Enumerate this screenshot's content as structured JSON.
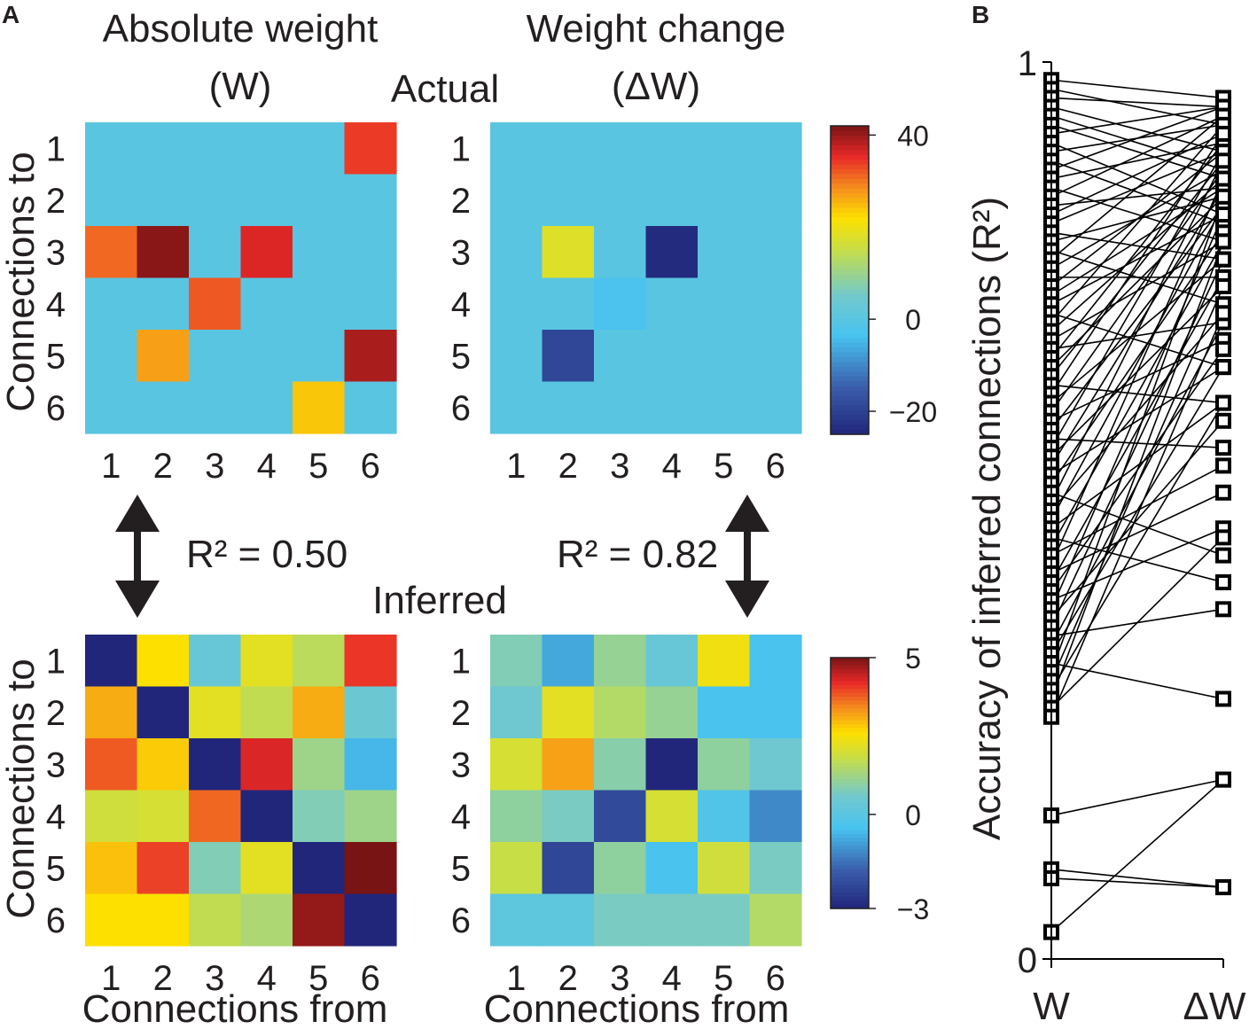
{
  "panel_labels": {
    "a": "A",
    "b": "B"
  },
  "labels": {
    "abs_title_line1": "Absolute weight",
    "abs_title_line2": "(W)",
    "chg_title_line1": "Weight change",
    "chg_title_line2": "(ΔW)",
    "actual": "Actual",
    "inferred": "Inferred",
    "r2_left": "R² = 0.50",
    "r2_right": "R² = 0.82",
    "connections_to": "Connections to",
    "connections_from": "Connections from"
  },
  "colors": {
    "background_cell": "#73c9cc",
    "line": "#000000",
    "text": "#231f20"
  },
  "chart_data": [
    {
      "type": "heatmap",
      "id": "actual-w",
      "title": "Absolute weight (W)",
      "ylabel": "Connections to",
      "xlabel": "",
      "x_ticks": [
        "1",
        "2",
        "3",
        "4",
        "5",
        "6"
      ],
      "y_ticks": [
        "1",
        "2",
        "3",
        "4",
        "5",
        "6"
      ],
      "cmin": -25,
      "cmax": 42,
      "values": [
        [
          0,
          0,
          0,
          0,
          0,
          34
        ],
        [
          0,
          0,
          0,
          0,
          0,
          0
        ],
        [
          31,
          41,
          0,
          36,
          0,
          0
        ],
        [
          0,
          0,
          32,
          0,
          0,
          0
        ],
        [
          0,
          27,
          0,
          0,
          0,
          39
        ],
        [
          0,
          0,
          0,
          0,
          24,
          0
        ]
      ]
    },
    {
      "type": "heatmap",
      "id": "actual-dw",
      "title": "Weight change (ΔW)",
      "xlabel": "",
      "ylabel": "",
      "x_ticks": [
        "1",
        "2",
        "3",
        "4",
        "5",
        "6"
      ],
      "y_ticks": [
        "1",
        "2",
        "3",
        "4",
        "5",
        "6"
      ],
      "cmin": -25,
      "cmax": 42,
      "values": [
        [
          0,
          0,
          0,
          0,
          0,
          0
        ],
        [
          0,
          0,
          0,
          0,
          0,
          0
        ],
        [
          0,
          18,
          0,
          -24,
          0,
          0
        ],
        [
          0,
          0,
          -3,
          0,
          0,
          0
        ],
        [
          0,
          -19,
          0,
          0,
          0,
          0
        ],
        [
          0,
          0,
          0,
          0,
          0,
          0
        ]
      ],
      "colorbar": {
        "ticks": [
          "40",
          "0",
          "−20"
        ],
        "tick_values": [
          40,
          0,
          -20
        ]
      }
    },
    {
      "type": "heatmap",
      "id": "inferred-w",
      "title": "",
      "ylabel": "Connections to",
      "xlabel": "Connections from",
      "x_ticks": [
        "1",
        "2",
        "3",
        "4",
        "5",
        "6"
      ],
      "y_ticks": [
        "1",
        "2",
        "3",
        "4",
        "5",
        "6"
      ],
      "cmin": -3,
      "cmax": 5,
      "values": [
        [
          -3.0,
          2.6,
          0.3,
          2.2,
          1.6,
          4.1
        ],
        [
          3.1,
          -3.0,
          2.2,
          1.7,
          3.1,
          0.4
        ],
        [
          3.8,
          2.8,
          -3.0,
          4.3,
          1.2,
          -0.6
        ],
        [
          1.9,
          2.0,
          3.7,
          -3.0,
          0.8,
          1.2
        ],
        [
          2.9,
          4.0,
          0.8,
          2.2,
          -3.0,
          5.0
        ],
        [
          2.6,
          2.6,
          1.7,
          1.4,
          4.8,
          -3.0
        ]
      ]
    },
    {
      "type": "heatmap",
      "id": "inferred-dw",
      "title": "",
      "ylabel": "",
      "xlabel": "Connections from",
      "x_ticks": [
        "1",
        "2",
        "3",
        "4",
        "5",
        "6"
      ],
      "y_ticks": [
        "1",
        "2",
        "3",
        "4",
        "5",
        "6"
      ],
      "cmin": -3,
      "cmax": 5,
      "values": [
        [
          0.8,
          -0.8,
          1.1,
          0.3,
          2.4,
          -0.4
        ],
        [
          0.5,
          2.2,
          1.5,
          1.1,
          -0.4,
          -0.4
        ],
        [
          2.0,
          3.2,
          0.9,
          -3.0,
          1.0,
          0.5
        ],
        [
          1.0,
          0.7,
          -2.2,
          2.0,
          -0.2,
          -1.2
        ],
        [
          1.8,
          -2.3,
          1.0,
          -0.4,
          1.9,
          0.7
        ],
        [
          0.1,
          0.1,
          0.7,
          0.7,
          0.7,
          1.5
        ]
      ],
      "colorbar": {
        "ticks": [
          "5",
          "0",
          "−3"
        ],
        "tick_values": [
          5,
          0,
          -3
        ]
      }
    },
    {
      "type": "line",
      "id": "accuracy-paired",
      "title": "",
      "ylabel": "Accuracy of inferred connections (R²)",
      "xlabel": "",
      "categories": [
        "W",
        "ΔW"
      ],
      "y_ticks": [
        "0",
        "1"
      ],
      "ylim": [
        0,
        1
      ],
      "pairs": [
        [
          0.98,
          0.96
        ],
        [
          0.97,
          0.93
        ],
        [
          0.96,
          0.95
        ],
        [
          0.95,
          0.9
        ],
        [
          0.94,
          0.88
        ],
        [
          0.93,
          0.87
        ],
        [
          0.92,
          0.95
        ],
        [
          0.91,
          0.83
        ],
        [
          0.9,
          0.93
        ],
        [
          0.89,
          0.82
        ],
        [
          0.88,
          0.95
        ],
        [
          0.87,
          0.91
        ],
        [
          0.86,
          0.8
        ],
        [
          0.85,
          0.94
        ],
        [
          0.84,
          0.86
        ],
        [
          0.83,
          0.92
        ],
        [
          0.82,
          0.9
        ],
        [
          0.81,
          0.78
        ],
        [
          0.8,
          0.85
        ],
        [
          0.79,
          0.73
        ],
        [
          0.78,
          0.94
        ],
        [
          0.77,
          0.88
        ],
        [
          0.76,
          0.76
        ],
        [
          0.75,
          0.9
        ],
        [
          0.74,
          0.86
        ],
        [
          0.73,
          0.83
        ],
        [
          0.72,
          0.66
        ],
        [
          0.71,
          0.93
        ],
        [
          0.7,
          0.87
        ],
        [
          0.69,
          0.8
        ],
        [
          0.68,
          0.71
        ],
        [
          0.67,
          0.91
        ],
        [
          0.66,
          0.85
        ],
        [
          0.65,
          0.89
        ],
        [
          0.64,
          0.62
        ],
        [
          0.63,
          0.92
        ],
        [
          0.62,
          0.78
        ],
        [
          0.61,
          0.88
        ],
        [
          0.6,
          0.69
        ],
        [
          0.59,
          0.84
        ],
        [
          0.58,
          0.57
        ],
        [
          0.57,
          0.9
        ],
        [
          0.56,
          0.75
        ],
        [
          0.55,
          0.86
        ],
        [
          0.54,
          0.66
        ],
        [
          0.53,
          0.81
        ],
        [
          0.52,
          0.45
        ],
        [
          0.51,
          0.89
        ],
        [
          0.5,
          0.72
        ],
        [
          0.49,
          0.84
        ],
        [
          0.48,
          0.62
        ],
        [
          0.47,
          0.42
        ],
        [
          0.46,
          0.8
        ],
        [
          0.45,
          0.55
        ],
        [
          0.44,
          0.87
        ],
        [
          0.43,
          0.52
        ],
        [
          0.42,
          0.76
        ],
        [
          0.41,
          0.68
        ],
        [
          0.4,
          0.48
        ],
        [
          0.39,
          0.83
        ],
        [
          0.38,
          0.6
        ],
        [
          0.37,
          0.78
        ],
        [
          0.36,
          0.39
        ],
        [
          0.35,
          0.71
        ],
        [
          0.34,
          0.66
        ],
        [
          0.33,
          0.29
        ],
        [
          0.32,
          0.85
        ],
        [
          0.31,
          0.75
        ],
        [
          0.3,
          0.62
        ],
        [
          0.29,
          0.8
        ],
        [
          0.28,
          0.47
        ],
        [
          0.27,
          0.72
        ],
        [
          0.16,
          0.2
        ],
        [
          0.1,
          0.08
        ],
        [
          0.09,
          0.08
        ],
        [
          0.03,
          0.2
        ]
      ]
    }
  ]
}
